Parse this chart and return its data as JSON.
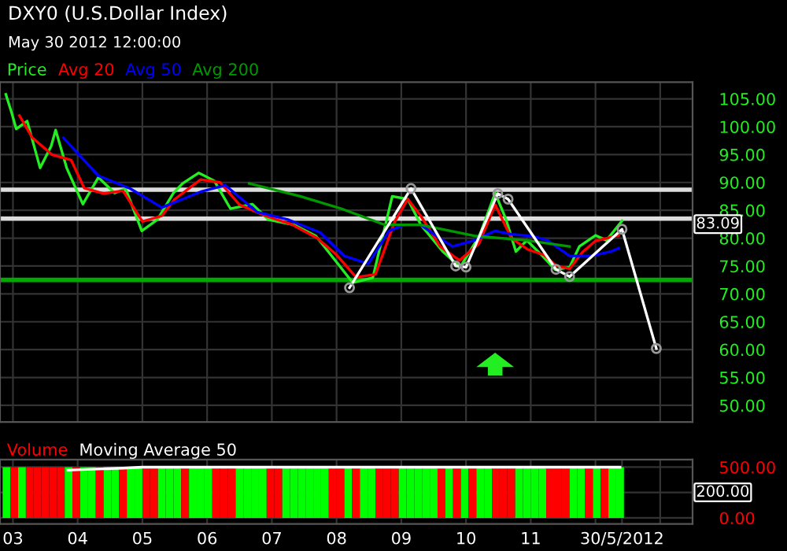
{
  "chart_data": [
    {
      "type": "line",
      "title": "DXY0 (U.S.Dollar Index)",
      "subtitle": "May 30 2012 12:00:00",
      "legend": "top left",
      "grid": true,
      "tick_labels": "y",
      "marker": "none",
      "xlim": [
        2002.8,
        2013.5
      ],
      "ylim": [
        47,
        108
      ],
      "xticks": [
        {
          "value": 2003,
          "label": null
        },
        {
          "value": 2004,
          "label": null
        },
        {
          "value": 2005,
          "label": null
        },
        {
          "value": 2006,
          "label": null
        },
        {
          "value": 2007,
          "label": null
        },
        {
          "value": 2008,
          "label": null
        },
        {
          "value": 2009,
          "label": null
        },
        {
          "value": 2010,
          "label": null
        },
        {
          "value": 2011,
          "label": null
        },
        {
          "value": 2012,
          "label": null
        },
        {
          "value": 2013,
          "label": null
        }
      ],
      "yticks": [
        {
          "value": 50,
          "label": "50.00"
        },
        {
          "value": 55,
          "label": "55.00"
        },
        {
          "value": 60,
          "label": "60.00"
        },
        {
          "value": 65,
          "label": "65.00"
        },
        {
          "value": 70,
          "label": "70.00"
        },
        {
          "value": 75,
          "label": "75.00"
        },
        {
          "value": 80,
          "label": "80.00"
        },
        {
          "value": 85,
          "label": "85.00"
        },
        {
          "value": 90,
          "label": "90.00"
        },
        {
          "value": 95,
          "label": "95.00"
        },
        {
          "value": 100,
          "label": "100.00"
        },
        {
          "value": 105,
          "label": "105.00"
        }
      ],
      "ref_lines": [
        {
          "axis": "y",
          "value": 88.7,
          "color": "#dddddd"
        },
        {
          "axis": "y",
          "value": 83.5,
          "color": "#dddddd"
        },
        {
          "axis": "y",
          "value": 72.5,
          "color": "#00aa00"
        }
      ],
      "annotations": [
        "83.09"
      ],
      "series": [
        {
          "name": "Price",
          "color": "#22ee22",
          "x": [
            2002.89,
            2002.98,
            2003.05,
            2003.22,
            2003.42,
            2003.59,
            2003.66,
            2003.83,
            2004.08,
            2004.32,
            2004.57,
            2004.74,
            2004.99,
            2005.23,
            2005.48,
            2005.62,
            2005.87,
            2006.11,
            2006.36,
            2006.7,
            2006.95,
            2007.34,
            2007.68,
            2008.0,
            2008.25,
            2008.56,
            2008.86,
            2009.1,
            2009.3,
            2009.64,
            2009.91,
            2010.21,
            2010.45,
            2010.62,
            2010.77,
            2010.94,
            2011.19,
            2011.38,
            2011.6,
            2011.75,
            2012.0,
            2012.17,
            2012.41
          ],
          "values": [
            105.8,
            102.5,
            99.6,
            101,
            92.6,
            96.5,
            99.4,
            92.6,
            86.1,
            90.9,
            88.1,
            88.9,
            81.3,
            83.3,
            88.1,
            89.8,
            91.7,
            90.3,
            85.3,
            86.1,
            83.3,
            82.4,
            80.4,
            75.7,
            72.0,
            72.9,
            87.5,
            87,
            82.4,
            77.6,
            74.8,
            80.5,
            88.1,
            83.3,
            77.6,
            79.6,
            76.7,
            74.3,
            74.8,
            78.5,
            80.5,
            79.6,
            83.1
          ]
        },
        {
          "name": "Avg 20",
          "color": "#ff0000",
          "x": [
            2003.1,
            2003.3,
            2003.6,
            2003.9,
            2004.1,
            2004.4,
            2004.7,
            2005.0,
            2005.3,
            2005.5,
            2005.9,
            2006.2,
            2006.5,
            2006.9,
            2007.3,
            2007.7,
            2008.0,
            2008.3,
            2008.6,
            2008.9,
            2009.1,
            2009.3,
            2009.6,
            2009.9,
            2010.2,
            2010.45,
            2010.7,
            2010.95,
            2011.2,
            2011.4,
            2011.6,
            2011.8,
            2012.0,
            2012.36
          ],
          "values": [
            102,
            98,
            95,
            94,
            89,
            88,
            88.5,
            83,
            84,
            87,
            90.5,
            90,
            86,
            84,
            82.5,
            80,
            77,
            73,
            73.5,
            83,
            87,
            84,
            78.5,
            76,
            79,
            86,
            80,
            78,
            77,
            75,
            74.5,
            77.5,
            79.5,
            80.5
          ]
        },
        {
          "name": "Avg 50",
          "color": "#0000ff",
          "x": [
            2003.78,
            2004.32,
            2004.81,
            2005.3,
            2005.62,
            2005.92,
            2006.28,
            2006.77,
            2007.26,
            2007.75,
            2008.12,
            2008.49,
            2008.81,
            2009.05,
            2009.3,
            2009.54,
            2009.79,
            2010.13,
            2010.45,
            2010.7,
            2011.01,
            2011.26,
            2011.6,
            2011.92,
            2012.24,
            2012.36
          ],
          "values": [
            98,
            91.2,
            88.9,
            85.5,
            87,
            88.4,
            89.5,
            84.7,
            83.3,
            81.0,
            76.8,
            75.4,
            81.3,
            82.4,
            82.4,
            80.4,
            78.5,
            79.6,
            81.3,
            80.7,
            80.4,
            79.6,
            76.8,
            76.8,
            77.6,
            78.2
          ]
        },
        {
          "name": "Avg 200",
          "color": "#009900",
          "x": [
            2006.65,
            2007.44,
            2008.07,
            2008.74,
            2009.3,
            2010.13,
            2010.94,
            2011.6
          ],
          "values": [
            89.8,
            87.5,
            85.3,
            82.4,
            82.4,
            80.4,
            79.6,
            78.5
          ]
        },
        {
          "color": "#ffffff",
          "marker": "circle",
          "x": [
            2008.2,
            2009.15,
            2009.84,
            2010.0,
            2010.49,
            2010.65,
            2011.39,
            2011.6,
            2012.41,
            2012.94
          ],
          "values": [
            71.1,
            88.9,
            75.0,
            74.8,
            88.0,
            87.0,
            74.4,
            73.1,
            81.6,
            60.2
          ]
        }
      ]
    },
    {
      "type": "bar",
      "legend": "top left",
      "grid": true,
      "marker": "none",
      "xlim": [
        2002.8,
        2013.5
      ],
      "ylim": [
        -60,
        575
      ],
      "xticks": [
        {
          "value": 2003,
          "label": "03"
        },
        {
          "value": 2004,
          "label": "04"
        },
        {
          "value": 2005,
          "label": "05"
        },
        {
          "value": 2006,
          "label": "06"
        },
        {
          "value": 2007,
          "label": "07"
        },
        {
          "value": 2008,
          "label": "08"
        },
        {
          "value": 2009,
          "label": "09"
        },
        {
          "value": 2010,
          "label": "10"
        },
        {
          "value": 2011,
          "label": "11"
        },
        {
          "value": 2012,
          "label": null
        },
        {
          "value": 2012.41,
          "label": "30/5/2012"
        },
        {
          "value": 2013,
          "label": null
        }
      ],
      "yticks": [
        {
          "value": 0,
          "label": "0.00"
        },
        {
          "value": 250,
          "label": null
        },
        {
          "value": 500,
          "label": "500.00"
        }
      ],
      "annotations": [
        "200.00"
      ],
      "series": [
        {
          "name": "Volume",
          "color": "#ff0000",
          "x": [
            2002.9,
            2003.02,
            2003.14,
            2003.26,
            2003.38,
            2003.5,
            2003.62,
            2003.74,
            2003.86,
            2003.98,
            2004.1,
            2004.22,
            2004.34,
            2004.46,
            2004.58,
            2004.7,
            2004.82,
            2004.94,
            2005.06,
            2005.18,
            2005.3,
            2005.42,
            2005.54,
            2005.66,
            2005.78,
            2005.9,
            2006.02,
            2006.14,
            2006.26,
            2006.38,
            2006.5,
            2006.62,
            2006.74,
            2006.86,
            2006.98,
            2007.1,
            2007.22,
            2007.34,
            2007.46,
            2007.58,
            2007.7,
            2007.82,
            2007.94,
            2008.06,
            2008.18,
            2008.3,
            2008.42,
            2008.54,
            2008.66,
            2008.78,
            2008.9,
            2009.02,
            2009.14,
            2009.26,
            2009.38,
            2009.5,
            2009.62,
            2009.74,
            2009.86,
            2009.98,
            2010.1,
            2010.22,
            2010.34,
            2010.46,
            2010.58,
            2010.7,
            2010.82,
            2010.94,
            2011.06,
            2011.18,
            2011.3,
            2011.42,
            2011.54,
            2011.66,
            2011.78,
            2011.9,
            2012.02,
            2012.14,
            2012.26,
            2012.38
          ],
          "values": [
            500,
            500,
            500,
            500,
            500,
            500,
            500,
            500,
            500,
            500,
            500,
            500,
            500,
            500,
            500,
            500,
            500,
            500,
            500,
            500,
            500,
            500,
            500,
            500,
            500,
            500,
            500,
            500,
            500,
            500,
            500,
            500,
            500,
            500,
            500,
            500,
            500,
            500,
            500,
            500,
            500,
            500,
            500,
            500,
            500,
            500,
            500,
            500,
            500,
            500,
            500,
            500,
            500,
            500,
            500,
            500,
            500,
            500,
            500,
            500,
            500,
            500,
            500,
            500,
            500,
            500,
            500,
            500,
            500,
            500,
            500,
            500,
            500,
            500,
            500,
            500,
            500,
            500,
            500,
            500
          ],
          "colors": [
            "#00ff00",
            "#ff0000",
            "#00ff00",
            "#ff0000",
            "#ff0000",
            "#ff0000",
            "#ff0000",
            "#ff0000",
            "#00ff00",
            "#ff0000",
            "#00ff00",
            "#00ff00",
            "#ff0000",
            "#00ff00",
            "#00ff00",
            "#ff0000",
            "#00ff00",
            "#00ff00",
            "#ff0000",
            "#ff0000",
            "#00ff00",
            "#00ff00",
            "#00ff00",
            "#ff0000",
            "#00ff00",
            "#00ff00",
            "#00ff00",
            "#ff0000",
            "#ff0000",
            "#ff0000",
            "#00ff00",
            "#00ff00",
            "#00ff00",
            "#00ff00",
            "#ff0000",
            "#ff0000",
            "#00ff00",
            "#00ff00",
            "#00ff00",
            "#00ff00",
            "#00ff00",
            "#00ff00",
            "#ff0000",
            "#ff0000",
            "#00ff00",
            "#ff0000",
            "#00ff00",
            "#00ff00",
            "#ff0000",
            "#ff0000",
            "#ff0000",
            "#00ff00",
            "#00ff00",
            "#00ff00",
            "#00ff00",
            "#00ff00",
            "#ff0000",
            "#00ff00",
            "#ff0000",
            "#00ff00",
            "#ff0000",
            "#00ff00",
            "#00ff00",
            "#ff0000",
            "#ff0000",
            "#ff0000",
            "#00ff00",
            "#00ff00",
            "#00ff00",
            "#00ff00",
            "#ff0000",
            "#ff0000",
            "#ff0000",
            "#00ff00",
            "#00ff00",
            "#ff0000",
            "#00ff00",
            "#ff0000",
            "#00ff00",
            "#00ff00"
          ]
        },
        {
          "name": "Moving Average 50",
          "type": "line",
          "color": "#ffffff",
          "x": [
            2003.85,
            2004.2,
            2004.7,
            2005.0,
            2012.38
          ],
          "values": [
            470,
            480,
            490,
            500,
            500
          ]
        }
      ]
    }
  ]
}
